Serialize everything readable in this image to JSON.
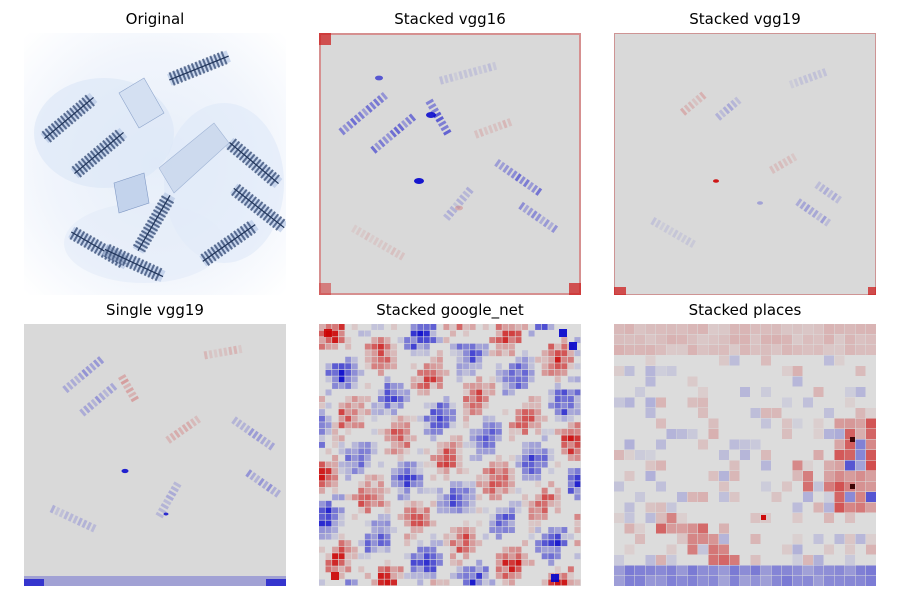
{
  "panels": [
    {
      "title": "Original",
      "image": "original-aerial-photo"
    },
    {
      "title": "Stacked vgg16",
      "image": "saliency-heatmap"
    },
    {
      "title": "Stacked vgg19",
      "image": "saliency-heatmap"
    },
    {
      "title": "Single vgg19",
      "image": "saliency-heatmap"
    },
    {
      "title": "Stacked google_net",
      "image": "saliency-heatmap"
    },
    {
      "title": "Stacked places",
      "image": "saliency-heatmap"
    }
  ],
  "colors": {
    "background": "#d9d9d9",
    "positive": "#cc0000",
    "negative": "#0000cc",
    "photo_tint": "#5b7db8"
  }
}
